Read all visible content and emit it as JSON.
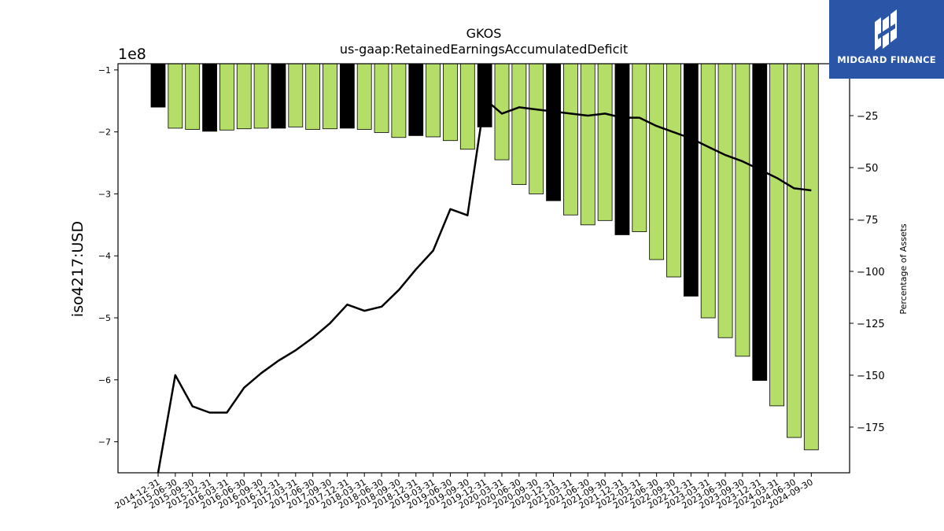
{
  "brand": {
    "name": "MIDGARD FINANCE",
    "logo_icon": "midgard-logo-icon",
    "background_color": "#2b56a8"
  },
  "chart_data": {
    "type": "bar",
    "title": "GKOS",
    "subtitle": "us-gaap:RetainedEarningsAccumulatedDeficit",
    "ylabel": "iso4217:USD",
    "y_offset_label": "1e8",
    "y2label": "Percentage of Assets",
    "ylim": [
      -750000000.0,
      -90000000.0
    ],
    "y2lim": [
      -197,
      0
    ],
    "yticks": [
      -1,
      -2,
      -3,
      -4,
      -5,
      -6,
      -7
    ],
    "y2ticks": [
      -25,
      -50,
      -75,
      -100,
      -125,
      -150,
      -175
    ],
    "grid": false,
    "legend": "none",
    "colors": {
      "quarterly_bar": "#b5de68",
      "annual_bar": "#000000",
      "line": "#000000"
    },
    "categories": [
      "2014-12-31",
      "2015-06-30",
      "2015-09-30",
      "2015-12-31",
      "2016-03-31",
      "2016-06-30",
      "2016-09-30",
      "2016-12-31",
      "2017-03-31",
      "2017-06-30",
      "2017-09-30",
      "2017-12-31",
      "2018-03-31",
      "2018-06-30",
      "2018-09-30",
      "2018-12-31",
      "2019-03-31",
      "2019-06-30",
      "2019-09-30",
      "2019-12-31",
      "2020-03-31",
      "2020-06-30",
      "2020-09-30",
      "2020-12-31",
      "2021-03-31",
      "2021-06-30",
      "2021-09-30",
      "2021-12-31",
      "2022-03-31",
      "2022-06-30",
      "2022-09-30",
      "2022-12-31",
      "2023-03-31",
      "2023-06-30",
      "2023-09-30",
      "2023-12-31",
      "2024-03-31",
      "2024-06-30",
      "2024-09-30"
    ],
    "annual": [
      true,
      false,
      false,
      true,
      false,
      false,
      false,
      true,
      false,
      false,
      false,
      true,
      false,
      false,
      false,
      true,
      false,
      false,
      false,
      true,
      false,
      false,
      false,
      true,
      false,
      false,
      false,
      true,
      false,
      false,
      false,
      true,
      false,
      false,
      false,
      true,
      false,
      false,
      false
    ],
    "values": [
      -160000000.0,
      -194000000.0,
      -196000000.0,
      -199000000.0,
      -197000000.0,
      -195000000.0,
      -194000000.0,
      -194000000.0,
      -192000000.0,
      -196000000.0,
      -195000000.0,
      -194000000.0,
      -196000000.0,
      -201000000.0,
      -209000000.0,
      -206000000.0,
      -208000000.0,
      -214000000.0,
      -228000000.0,
      -192000000.0,
      -245000000.0,
      -285000000.0,
      -300000000.0,
      -311000000.0,
      -334000000.0,
      -350000000.0,
      -343000000.0,
      -366000000.0,
      -361000000.0,
      -406000000.0,
      -434000000.0,
      -465000000.0,
      -500000000.0,
      -532000000.0,
      -562000000.0,
      -601000000.0,
      -642000000.0,
      -693000000.0,
      -713000000.0
    ],
    "pct_of_assets": [
      -197,
      -150,
      -165,
      -168,
      -168,
      -156,
      -149,
      -143,
      -138,
      -132,
      -125,
      -116,
      -119,
      -117,
      -109,
      -99,
      -90,
      -70,
      -73,
      -17,
      -24,
      -21,
      -22,
      -23,
      -24,
      -25,
      -24,
      -26,
      -26,
      -30,
      -33,
      -36,
      -40,
      -44,
      -47,
      -51,
      -55,
      -60,
      -61
    ]
  }
}
